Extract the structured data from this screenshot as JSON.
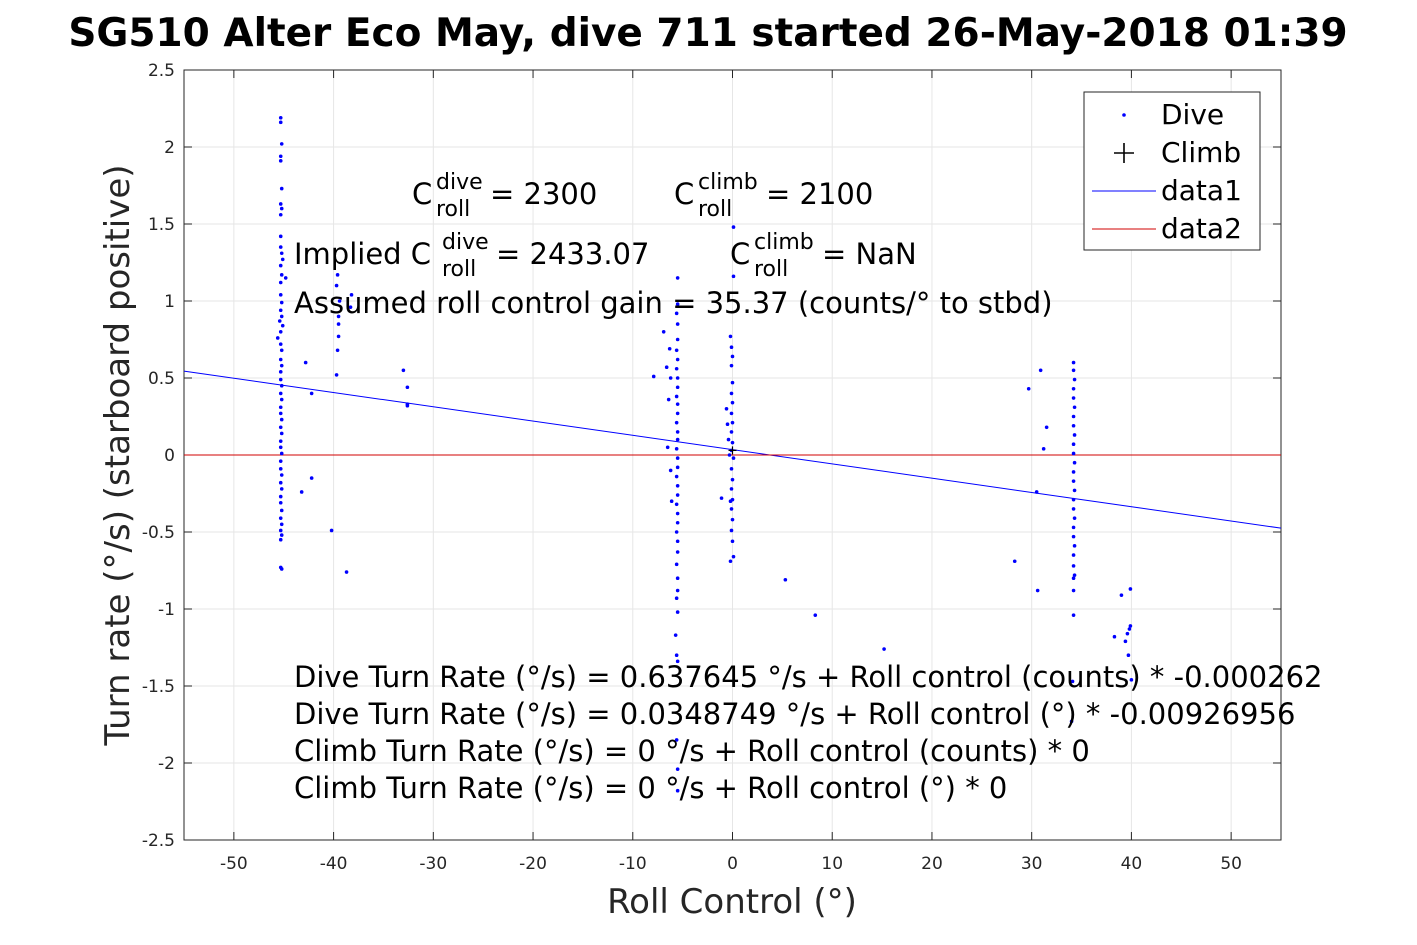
{
  "colors": {
    "dive": "#0000ff",
    "fit_line": "#0000ff",
    "zero_line": "#d00000",
    "grid": "#e6e6e6",
    "axis": "#262626"
  },
  "chart_data": {
    "type": "scatter",
    "title": "SG510 Alter Eco May, dive 711 started 26-May-2018 01:39",
    "xlabel": "Roll Control (°)",
    "ylabel": "Turn rate (°/s) (starboard positive)",
    "xlim": [
      -55,
      55
    ],
    "ylim": [
      -2.5,
      2.5
    ],
    "xticks": [
      "-50",
      "-40",
      "-30",
      "-20",
      "-10",
      "0",
      "10",
      "20",
      "30",
      "40",
      "50"
    ],
    "yticks": [
      "2.5",
      "2",
      "1.5",
      "1",
      "0.5",
      "0",
      "-0.5",
      "-1",
      "-1.5",
      "-2",
      "-2.5"
    ],
    "grid": true,
    "legend": {
      "placement": "top-right",
      "entries": [
        {
          "label": "Dive",
          "marker": "dot"
        },
        {
          "label": "Climb",
          "marker": "plus"
        },
        {
          "label": "data1",
          "marker": "line"
        },
        {
          "label": "data2",
          "marker": "line"
        }
      ]
    },
    "series": [
      {
        "name": "Dive",
        "points": [
          [
            -45.3,
            2.19
          ],
          [
            -45.3,
            2.16
          ],
          [
            -45.2,
            2.02
          ],
          [
            -45.3,
            1.94
          ],
          [
            -45.3,
            1.91
          ],
          [
            -45.2,
            1.73
          ],
          [
            -45.3,
            1.63
          ],
          [
            -45.2,
            1.6
          ],
          [
            -45.3,
            1.56
          ],
          [
            -45.3,
            1.42
          ],
          [
            -45.3,
            1.35
          ],
          [
            -45.2,
            1.31
          ],
          [
            -45.1,
            1.27
          ],
          [
            -45.3,
            1.23
          ],
          [
            -45.2,
            1.17
          ],
          [
            -44.8,
            1.15
          ],
          [
            -45.3,
            1.12
          ],
          [
            -45.3,
            1.04
          ],
          [
            -45.2,
            0.99
          ],
          [
            -45.3,
            0.94
          ],
          [
            -45.2,
            0.9
          ],
          [
            -45.4,
            0.87
          ],
          [
            -45.1,
            0.84
          ],
          [
            -45.3,
            0.8
          ],
          [
            -45.6,
            0.76
          ],
          [
            -45.3,
            0.72
          ],
          [
            -45.2,
            0.68
          ],
          [
            -45.3,
            0.62
          ],
          [
            -45.2,
            0.58
          ],
          [
            -45.3,
            0.54
          ],
          [
            -45.3,
            0.49
          ],
          [
            -45.2,
            0.45
          ],
          [
            -45.3,
            0.4
          ],
          [
            -45.2,
            0.36
          ],
          [
            -45.3,
            0.31
          ],
          [
            -45.3,
            0.27
          ],
          [
            -45.2,
            0.23
          ],
          [
            -45.3,
            0.18
          ],
          [
            -45.2,
            0.14
          ],
          [
            -45.3,
            0.09
          ],
          [
            -45.3,
            0.05
          ],
          [
            -45.2,
            0.01
          ],
          [
            -45.3,
            -0.04
          ],
          [
            -45.3,
            -0.09
          ],
          [
            -45.2,
            -0.13
          ],
          [
            -45.3,
            -0.18
          ],
          [
            -45.2,
            -0.22
          ],
          [
            -45.3,
            -0.27
          ],
          [
            -45.3,
            -0.31
          ],
          [
            -45.2,
            -0.36
          ],
          [
            -45.3,
            -0.41
          ],
          [
            -45.2,
            -0.45
          ],
          [
            -45.3,
            -0.49
          ],
          [
            -45.2,
            -0.52
          ],
          [
            -45.3,
            -0.55
          ],
          [
            -45.3,
            -0.73
          ],
          [
            -45.2,
            -0.74
          ],
          [
            -42.8,
            0.6
          ],
          [
            -42.2,
            0.4
          ],
          [
            -43.2,
            -0.24
          ],
          [
            -42.2,
            -0.15
          ],
          [
            -40.2,
            -0.49
          ],
          [
            -38.7,
            -0.76
          ],
          [
            -39.6,
            1.17
          ],
          [
            -39.7,
            1.1
          ],
          [
            -39.4,
            1.0
          ],
          [
            -39.5,
            0.9
          ],
          [
            -39.5,
            0.85
          ],
          [
            -39.5,
            0.77
          ],
          [
            -39.6,
            0.68
          ],
          [
            -39.7,
            0.52
          ],
          [
            -38.2,
            1.04
          ],
          [
            -38.3,
            0.96
          ],
          [
            -33.0,
            0.55
          ],
          [
            -32.6,
            0.44
          ],
          [
            -32.6,
            0.33
          ],
          [
            -32.6,
            0.32
          ],
          [
            -7.9,
            0.51
          ],
          [
            -6.9,
            0.8
          ],
          [
            -6.3,
            0.69
          ],
          [
            -6.6,
            0.57
          ],
          [
            -6.2,
            0.5
          ],
          [
            -6.4,
            0.36
          ],
          [
            -6.5,
            0.05
          ],
          [
            -6.2,
            -0.1
          ],
          [
            -6.1,
            -0.3
          ],
          [
            -5.5,
            1.15
          ],
          [
            -5.5,
            0.98
          ],
          [
            -5.6,
            0.92
          ],
          [
            -5.5,
            0.85
          ],
          [
            -5.5,
            0.75
          ],
          [
            -5.6,
            0.68
          ],
          [
            -5.5,
            0.62
          ],
          [
            -5.6,
            0.56
          ],
          [
            -5.5,
            0.5
          ],
          [
            -5.5,
            0.44
          ],
          [
            -5.6,
            0.38
          ],
          [
            -5.5,
            0.33
          ],
          [
            -5.5,
            0.27
          ],
          [
            -5.6,
            0.21
          ],
          [
            -5.5,
            0.15
          ],
          [
            -5.5,
            0.1
          ],
          [
            -5.6,
            0.04
          ],
          [
            -5.5,
            -0.02
          ],
          [
            -5.5,
            -0.08
          ],
          [
            -5.6,
            -0.14
          ],
          [
            -5.5,
            -0.2
          ],
          [
            -5.5,
            -0.26
          ],
          [
            -5.6,
            -0.32
          ],
          [
            -5.5,
            -0.38
          ],
          [
            -5.5,
            -0.44
          ],
          [
            -5.6,
            -0.5
          ],
          [
            -5.5,
            -0.56
          ],
          [
            -5.5,
            -0.63
          ],
          [
            -5.6,
            -0.71
          ],
          [
            -5.5,
            -0.8
          ],
          [
            -5.5,
            -0.88
          ],
          [
            -5.6,
            -0.93
          ],
          [
            -5.5,
            -1.02
          ],
          [
            -5.7,
            -1.17
          ],
          [
            -5.6,
            -1.3
          ],
          [
            -5.5,
            -1.34
          ],
          [
            -5.6,
            -1.85
          ],
          [
            -5.5,
            -2.04
          ],
          [
            -5.5,
            -2.18
          ],
          [
            -1.1,
            -0.28
          ],
          [
            -0.6,
            0.3
          ],
          [
            -0.5,
            0.2
          ],
          [
            -0.4,
            0.1
          ],
          [
            -0.3,
            0.0
          ],
          [
            -0.2,
            -0.3
          ],
          [
            0.1,
            1.48
          ],
          [
            0.1,
            1.16
          ],
          [
            -0.2,
            0.77
          ],
          [
            -0.1,
            0.7
          ],
          [
            0.0,
            0.64
          ],
          [
            -0.1,
            0.58
          ],
          [
            0.0,
            0.47
          ],
          [
            -0.1,
            0.4
          ],
          [
            0.0,
            0.34
          ],
          [
            -0.1,
            0.27
          ],
          [
            0.0,
            0.21
          ],
          [
            -0.1,
            0.15
          ],
          [
            0.0,
            0.08
          ],
          [
            -0.1,
            0.03
          ],
          [
            0.1,
            -0.02
          ],
          [
            -0.1,
            -0.09
          ],
          [
            0.0,
            -0.16
          ],
          [
            -0.1,
            -0.22
          ],
          [
            0.0,
            -0.29
          ],
          [
            -0.1,
            -0.35
          ],
          [
            0.0,
            -0.42
          ],
          [
            -0.1,
            -0.49
          ],
          [
            0.0,
            -0.56
          ],
          [
            0.1,
            -0.66
          ],
          [
            -0.2,
            -0.69
          ],
          [
            5.3,
            -0.81
          ],
          [
            8.3,
            -1.04
          ],
          [
            15.2,
            -1.26
          ],
          [
            28.3,
            -0.69
          ],
          [
            29.7,
            0.43
          ],
          [
            30.5,
            -0.24
          ],
          [
            30.6,
            -0.88
          ],
          [
            30.9,
            0.55
          ],
          [
            31.2,
            0.04
          ],
          [
            31.5,
            0.18
          ],
          [
            34.2,
            0.6
          ],
          [
            34.2,
            0.55
          ],
          [
            34.3,
            0.49
          ],
          [
            34.2,
            0.43
          ],
          [
            34.2,
            0.37
          ],
          [
            34.3,
            0.31
          ],
          [
            34.2,
            0.25
          ],
          [
            34.2,
            0.19
          ],
          [
            34.3,
            0.13
          ],
          [
            34.2,
            0.07
          ],
          [
            34.2,
            0.01
          ],
          [
            34.3,
            -0.05
          ],
          [
            34.2,
            -0.11
          ],
          [
            34.2,
            -0.17
          ],
          [
            34.3,
            -0.23
          ],
          [
            34.2,
            -0.29
          ],
          [
            34.2,
            -0.35
          ],
          [
            34.3,
            -0.41
          ],
          [
            34.2,
            -0.47
          ],
          [
            34.2,
            -0.53
          ],
          [
            34.3,
            -0.59
          ],
          [
            34.2,
            -0.65
          ],
          [
            34.2,
            -0.72
          ],
          [
            34.3,
            -0.78
          ],
          [
            34.2,
            -0.8
          ],
          [
            34.2,
            -0.88
          ],
          [
            34.2,
            -1.04
          ],
          [
            34.1,
            -1.47
          ],
          [
            34.0,
            -1.73
          ],
          [
            38.3,
            -1.18
          ],
          [
            39.0,
            -0.91
          ],
          [
            39.4,
            -1.21
          ],
          [
            39.6,
            -1.16
          ],
          [
            39.7,
            -1.3
          ],
          [
            39.8,
            -1.13
          ],
          [
            39.9,
            -1.11
          ],
          [
            39.9,
            -0.87
          ],
          [
            40.0,
            -1.46
          ]
        ]
      },
      {
        "name": "Climb",
        "points": [
          [
            0.0,
            0.03
          ]
        ]
      },
      {
        "name": "data1",
        "type": "line",
        "x": [
          -55,
          55
        ],
        "y": [
          0.5448,
          -0.4749
        ]
      },
      {
        "name": "data2",
        "type": "line",
        "x": [
          -55,
          55
        ],
        "y": [
          0,
          0
        ]
      }
    ]
  },
  "annotations": {
    "c_roll_dive": {
      "prefix": "C",
      "sup": "dive",
      "sub": "roll",
      "suffix": " = 2300"
    },
    "c_roll_climb": {
      "prefix": "C",
      "sup": "climb",
      "sub": "roll",
      "suffix": " = 2100"
    },
    "implied_dive": {
      "prefix": "Implied C",
      "sup": "dive",
      "sub": "roll",
      "suffix": " = 2433.07"
    },
    "implied_climb": {
      "prefix": "C",
      "sup": "climb",
      "sub": "roll",
      "suffix": " = NaN"
    },
    "gain": "Assumed roll control gain = 35.37 (counts/° to stbd)",
    "eq_lines": [
      "Dive Turn Rate (°/s) = 0.637645 °/s + Roll control (counts) * -0.000262",
      "Dive Turn Rate (°/s) = 0.0348749 °/s + Roll control (°) * -0.00926956",
      "Climb Turn Rate (°/s) = 0 °/s + Roll control (counts) * 0",
      "Climb Turn Rate (°/s) = 0 °/s + Roll control (°) * 0"
    ]
  }
}
